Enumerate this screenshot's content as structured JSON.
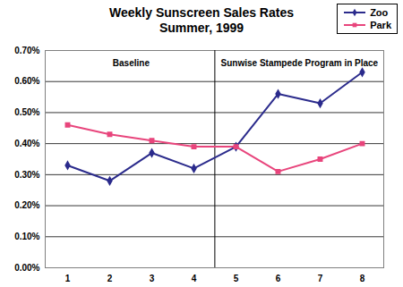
{
  "chart_data": {
    "type": "line",
    "title": "Weekly Sunscreen Sales Rates",
    "subtitle": "Summer, 1999",
    "categories": [
      1,
      2,
      3,
      4,
      5,
      6,
      7,
      8
    ],
    "series": [
      {
        "name": "Zoo",
        "color": "#2b2b8c",
        "marker": "diamond",
        "values": [
          0.33,
          0.28,
          0.37,
          0.32,
          0.39,
          0.56,
          0.53,
          0.63
        ]
      },
      {
        "name": "Park",
        "color": "#e8457c",
        "marker": "square",
        "values": [
          0.46,
          0.43,
          0.41,
          0.39,
          0.39,
          0.31,
          0.35,
          0.4
        ]
      }
    ],
    "ylim": [
      0,
      0.7
    ],
    "yticks": [
      {
        "value": 0,
        "label": "0.00%"
      },
      {
        "value": 0.1,
        "label": "0.10%"
      },
      {
        "value": 0.2,
        "label": "0.20%"
      },
      {
        "value": 0.3,
        "label": "0.30%"
      },
      {
        "value": 0.4,
        "label": "0.40%"
      },
      {
        "value": 0.5,
        "label": "0.50%"
      },
      {
        "value": 0.6,
        "label": "0.60%"
      },
      {
        "value": 0.7,
        "label": "0.70%"
      }
    ],
    "grid": true,
    "legend": "top-right",
    "annotations": [
      {
        "text": "Baseline",
        "start": 1
      },
      {
        "text": "Sunwise Stampede Program in Place",
        "start": 5
      }
    ]
  }
}
